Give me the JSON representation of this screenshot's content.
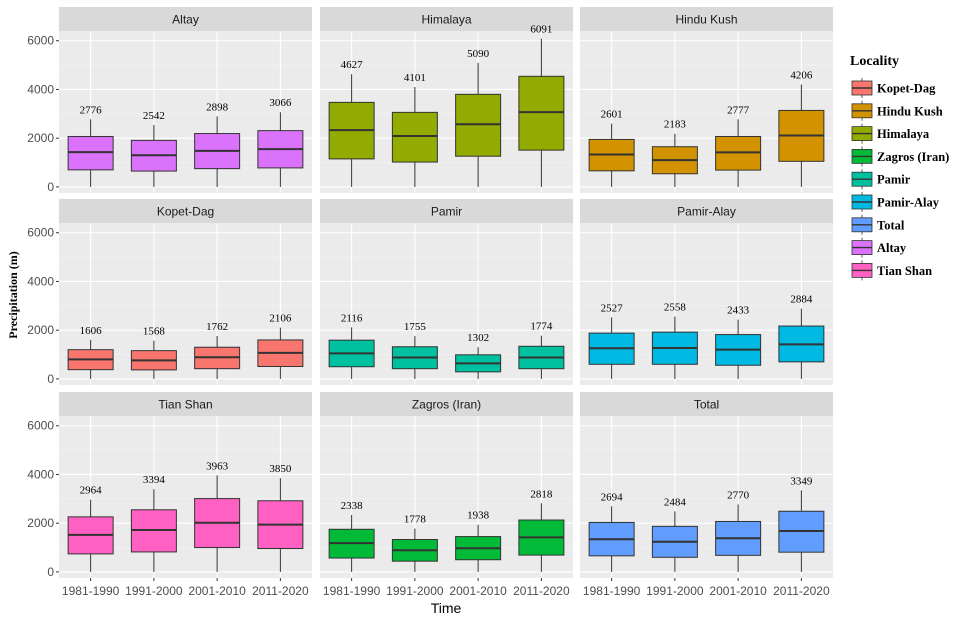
{
  "chart_data": {
    "type": "boxplot",
    "title": "",
    "xlabel": "Time",
    "ylabel": "Precipitation (m)",
    "ylim": [
      -250,
      6400
    ],
    "yticks": [
      0,
      2000,
      4000,
      6000
    ],
    "categories": [
      "1981-1990",
      "1991-2000",
      "2001-2010",
      "2011-2020"
    ],
    "grid": true,
    "legend": {
      "title": "Locality",
      "placement": "right",
      "entries": [
        {
          "name": "Kopet-Dag",
          "color": "#F8766D"
        },
        {
          "name": "Hindu Kush",
          "color": "#D39200"
        },
        {
          "name": "Himalaya",
          "color": "#93AA00"
        },
        {
          "name": "Zagros (Iran)",
          "color": "#00BA38"
        },
        {
          "name": "Pamir",
          "color": "#00C19F"
        },
        {
          "name": "Pamir-Alay",
          "color": "#00B9E3"
        },
        {
          "name": "Total",
          "color": "#619CFF"
        },
        {
          "name": "Altay",
          "color": "#DB72FB"
        },
        {
          "name": "Tian Shan",
          "color": "#FF61C3"
        }
      ]
    },
    "panels": [
      {
        "name": "Altay",
        "color": "#DB72FB",
        "edge": "#3d1f47",
        "boxes": [
          {
            "min": 0,
            "q1": 700,
            "median": 1430,
            "q3": 2070,
            "max": 2776,
            "label": "2776"
          },
          {
            "min": 0,
            "q1": 650,
            "median": 1300,
            "q3": 1910,
            "max": 2542,
            "label": "2542"
          },
          {
            "min": 0,
            "q1": 750,
            "median": 1480,
            "q3": 2190,
            "max": 2898,
            "label": "2898"
          },
          {
            "min": 0,
            "q1": 780,
            "median": 1550,
            "q3": 2310,
            "max": 3066,
            "label": "3066"
          }
        ]
      },
      {
        "name": "Himalaya",
        "color": "#93AA00",
        "edge": "#2b3200",
        "boxes": [
          {
            "min": 0,
            "q1": 1150,
            "median": 2330,
            "q3": 3470,
            "max": 4627,
            "label": "4627"
          },
          {
            "min": 0,
            "q1": 1020,
            "median": 2090,
            "q3": 3060,
            "max": 4101,
            "label": "4101"
          },
          {
            "min": 0,
            "q1": 1260,
            "median": 2570,
            "q3": 3800,
            "max": 5090,
            "label": "5090"
          },
          {
            "min": 0,
            "q1": 1510,
            "median": 3070,
            "q3": 4540,
            "max": 6091,
            "label": "6091"
          }
        ]
      },
      {
        "name": "Hindu Kush",
        "color": "#D39200",
        "edge": "#3d2a00",
        "boxes": [
          {
            "min": 0,
            "q1": 660,
            "median": 1330,
            "q3": 1950,
            "max": 2601,
            "label": "2601"
          },
          {
            "min": 0,
            "q1": 540,
            "median": 1100,
            "q3": 1650,
            "max": 2183,
            "label": "2183"
          },
          {
            "min": 0,
            "q1": 690,
            "median": 1420,
            "q3": 2070,
            "max": 2777,
            "label": "2777"
          },
          {
            "min": 0,
            "q1": 1050,
            "median": 2110,
            "q3": 3140,
            "max": 4206,
            "label": "4206"
          }
        ]
      },
      {
        "name": "Kopet-Dag",
        "color": "#F8766D",
        "edge": "#4a1f1c",
        "boxes": [
          {
            "min": 0,
            "q1": 380,
            "median": 800,
            "q3": 1200,
            "max": 1606,
            "label": "1606"
          },
          {
            "min": 0,
            "q1": 370,
            "median": 760,
            "q3": 1160,
            "max": 1568,
            "label": "1568"
          },
          {
            "min": 0,
            "q1": 420,
            "median": 890,
            "q3": 1300,
            "max": 1762,
            "label": "1762"
          },
          {
            "min": 0,
            "q1": 510,
            "median": 1070,
            "q3": 1600,
            "max": 2106,
            "label": "2106"
          }
        ]
      },
      {
        "name": "Pamir",
        "color": "#00C19F",
        "edge": "#003d32",
        "boxes": [
          {
            "min": 0,
            "q1": 500,
            "median": 1050,
            "q3": 1590,
            "max": 2116,
            "label": "2116"
          },
          {
            "min": 0,
            "q1": 420,
            "median": 880,
            "q3": 1320,
            "max": 1755,
            "label": "1755"
          },
          {
            "min": 0,
            "q1": 290,
            "median": 640,
            "q3": 990,
            "max": 1302,
            "label": "1302"
          },
          {
            "min": 0,
            "q1": 420,
            "median": 880,
            "q3": 1340,
            "max": 1774,
            "label": "1774"
          }
        ]
      },
      {
        "name": "Pamir-Alay",
        "color": "#00B9E3",
        "edge": "#003a47",
        "boxes": [
          {
            "min": 0,
            "q1": 600,
            "median": 1260,
            "q3": 1880,
            "max": 2527,
            "label": "2527"
          },
          {
            "min": 0,
            "q1": 600,
            "median": 1270,
            "q3": 1920,
            "max": 2558,
            "label": "2558"
          },
          {
            "min": 0,
            "q1": 560,
            "median": 1200,
            "q3": 1820,
            "max": 2433,
            "label": "2433"
          },
          {
            "min": 0,
            "q1": 700,
            "median": 1420,
            "q3": 2170,
            "max": 2884,
            "label": "2884"
          }
        ]
      },
      {
        "name": "Tian Shan",
        "color": "#FF61C3",
        "edge": "#4a1c39",
        "boxes": [
          {
            "min": 0,
            "q1": 740,
            "median": 1520,
            "q3": 2260,
            "max": 2964,
            "label": "2964"
          },
          {
            "min": 0,
            "q1": 820,
            "median": 1720,
            "q3": 2550,
            "max": 3394,
            "label": "3394"
          },
          {
            "min": 0,
            "q1": 1000,
            "median": 2020,
            "q3": 3010,
            "max": 3963,
            "label": "3963"
          },
          {
            "min": 0,
            "q1": 960,
            "median": 1940,
            "q3": 2920,
            "max": 3850,
            "label": "3850"
          }
        ]
      },
      {
        "name": "Zagros (Iran)",
        "color": "#00BA38",
        "edge": "#003d12",
        "boxes": [
          {
            "min": 0,
            "q1": 570,
            "median": 1180,
            "q3": 1750,
            "max": 2338,
            "label": "2338"
          },
          {
            "min": 0,
            "q1": 440,
            "median": 890,
            "q3": 1330,
            "max": 1778,
            "label": "1778"
          },
          {
            "min": 0,
            "q1": 500,
            "median": 970,
            "q3": 1450,
            "max": 1938,
            "label": "1938"
          },
          {
            "min": 0,
            "q1": 690,
            "median": 1420,
            "q3": 2130,
            "max": 2818,
            "label": "2818"
          }
        ]
      },
      {
        "name": "Total",
        "color": "#619CFF",
        "edge": "#1a2c4a",
        "boxes": [
          {
            "min": 0,
            "q1": 660,
            "median": 1340,
            "q3": 2030,
            "max": 2694,
            "label": "2694"
          },
          {
            "min": 0,
            "q1": 600,
            "median": 1240,
            "q3": 1870,
            "max": 2484,
            "label": "2484"
          },
          {
            "min": 0,
            "q1": 680,
            "median": 1380,
            "q3": 2070,
            "max": 2770,
            "label": "2770"
          },
          {
            "min": 0,
            "q1": 810,
            "median": 1680,
            "q3": 2490,
            "max": 3349,
            "label": "3349"
          }
        ]
      }
    ]
  }
}
